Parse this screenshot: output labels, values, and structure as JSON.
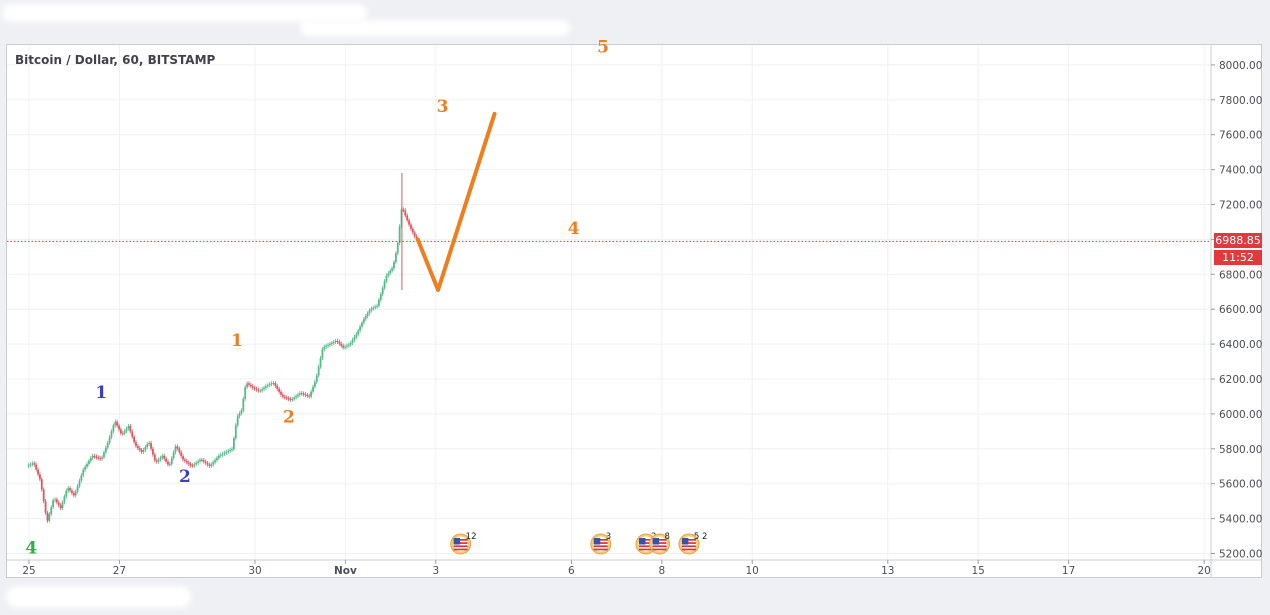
{
  "chart_data": {
    "type": "candlestick",
    "title": "Bitcoin / Dollar, 60, BITSTAMP",
    "ylim": [
      5150,
      8140
    ],
    "y_ticks": [
      8000,
      7800,
      7600,
      7400,
      7200,
      7000,
      6800,
      6600,
      6400,
      6200,
      6000,
      5800,
      5600,
      5400,
      5200
    ],
    "y_tick_labels": [
      "8000.00",
      "7800.00",
      "7600.00",
      "7400.00",
      "7200.00",
      "7000.00",
      "6800.00",
      "6600.00",
      "6400.00",
      "6200.00",
      "6000.00",
      "5800.00",
      "5600.00",
      "5400.00",
      "5200.00"
    ],
    "x_ticks": [
      {
        "label": "25",
        "day": 25
      },
      {
        "label": "27",
        "day": 27
      },
      {
        "label": "30",
        "day": 30
      },
      {
        "label": "Nov",
        "day": 32
      },
      {
        "label": "3",
        "day": 34
      },
      {
        "label": "6",
        "day": 37
      },
      {
        "label": "8",
        "day": 39
      },
      {
        "label": "10",
        "day": 41
      },
      {
        "label": "13",
        "day": 44
      },
      {
        "label": "15",
        "day": 46
      },
      {
        "label": "17",
        "day": 48
      },
      {
        "label": "20",
        "day": 51
      }
    ],
    "price_path": [
      [
        24.95,
        5700
      ],
      [
        25.1,
        5720
      ],
      [
        25.25,
        5620
      ],
      [
        25.4,
        5380
      ],
      [
        25.55,
        5520
      ],
      [
        25.7,
        5460
      ],
      [
        25.85,
        5580
      ],
      [
        26.0,
        5530
      ],
      [
        26.2,
        5680
      ],
      [
        26.4,
        5760
      ],
      [
        26.6,
        5740
      ],
      [
        26.75,
        5840
      ],
      [
        26.9,
        5960
      ],
      [
        27.05,
        5880
      ],
      [
        27.2,
        5930
      ],
      [
        27.35,
        5820
      ],
      [
        27.5,
        5780
      ],
      [
        27.65,
        5840
      ],
      [
        27.8,
        5720
      ],
      [
        27.95,
        5760
      ],
      [
        28.1,
        5700
      ],
      [
        28.25,
        5820
      ],
      [
        28.4,
        5740
      ],
      [
        28.6,
        5700
      ],
      [
        28.8,
        5740
      ],
      [
        29.0,
        5700
      ],
      [
        29.2,
        5760
      ],
      [
        29.35,
        5780
      ],
      [
        29.5,
        5800
      ],
      [
        29.6,
        5980
      ],
      [
        29.7,
        6020
      ],
      [
        29.8,
        6180
      ],
      [
        29.95,
        6150
      ],
      [
        30.1,
        6130
      ],
      [
        30.25,
        6160
      ],
      [
        30.4,
        6180
      ],
      [
        30.6,
        6100
      ],
      [
        30.8,
        6080
      ],
      [
        31.0,
        6120
      ],
      [
        31.2,
        6100
      ],
      [
        31.35,
        6200
      ],
      [
        31.5,
        6380
      ],
      [
        31.65,
        6400
      ],
      [
        31.8,
        6420
      ],
      [
        31.95,
        6380
      ],
      [
        32.1,
        6400
      ],
      [
        32.25,
        6460
      ],
      [
        32.4,
        6540
      ],
      [
        32.55,
        6600
      ],
      [
        32.7,
        6620
      ],
      [
        32.8,
        6700
      ],
      [
        32.9,
        6790
      ],
      [
        33.05,
        6840
      ],
      [
        33.15,
        6960
      ],
      [
        33.25,
        7190
      ],
      [
        33.35,
        7120
      ],
      [
        33.45,
        7060
      ],
      [
        33.55,
        7010
      ],
      [
        33.6,
        6990
      ]
    ],
    "wicks": [
      [
        33.25,
        6710,
        7380
      ]
    ],
    "last_price": "6988.85",
    "last_price_value": 6988.85,
    "countdown": "11:52",
    "projection": [
      [
        33.6,
        7000
      ],
      [
        34.05,
        6710
      ],
      [
        35.3,
        7720
      ]
    ],
    "wave_labels": [
      {
        "text": "4",
        "day": 25.05,
        "price": 5200,
        "color": "#2fae4e"
      },
      {
        "text": "1",
        "day": 26.6,
        "price": 6090,
        "color": "#3b3fbf"
      },
      {
        "text": "2",
        "day": 28.45,
        "price": 5610,
        "color": "#3b3fbf"
      },
      {
        "text": "1",
        "day": 29.6,
        "price": 6390,
        "color": "#f07d1e"
      },
      {
        "text": "2",
        "day": 30.75,
        "price": 5950,
        "color": "#f07d1e"
      },
      {
        "text": "3",
        "day": 34.15,
        "price": 7730,
        "color": "#f07d1e"
      },
      {
        "text": "4",
        "day": 37.05,
        "price": 7030,
        "color": "#f07d1e"
      },
      {
        "text": "5",
        "day": 37.7,
        "price": 8070,
        "color": "#f07d1e"
      }
    ],
    "events": [
      {
        "day": 34.55,
        "label": "12"
      },
      {
        "day": 37.65,
        "label": "3"
      },
      {
        "day": 38.65,
        "label": "2"
      },
      {
        "day": 38.95,
        "label": "8"
      },
      {
        "day": 39.6,
        "label": "5 2"
      }
    ],
    "colors": {
      "up": "#53b987",
      "down": "#e0555f",
      "projection": "#f07d1e",
      "last_price": "#e03a3e"
    }
  }
}
